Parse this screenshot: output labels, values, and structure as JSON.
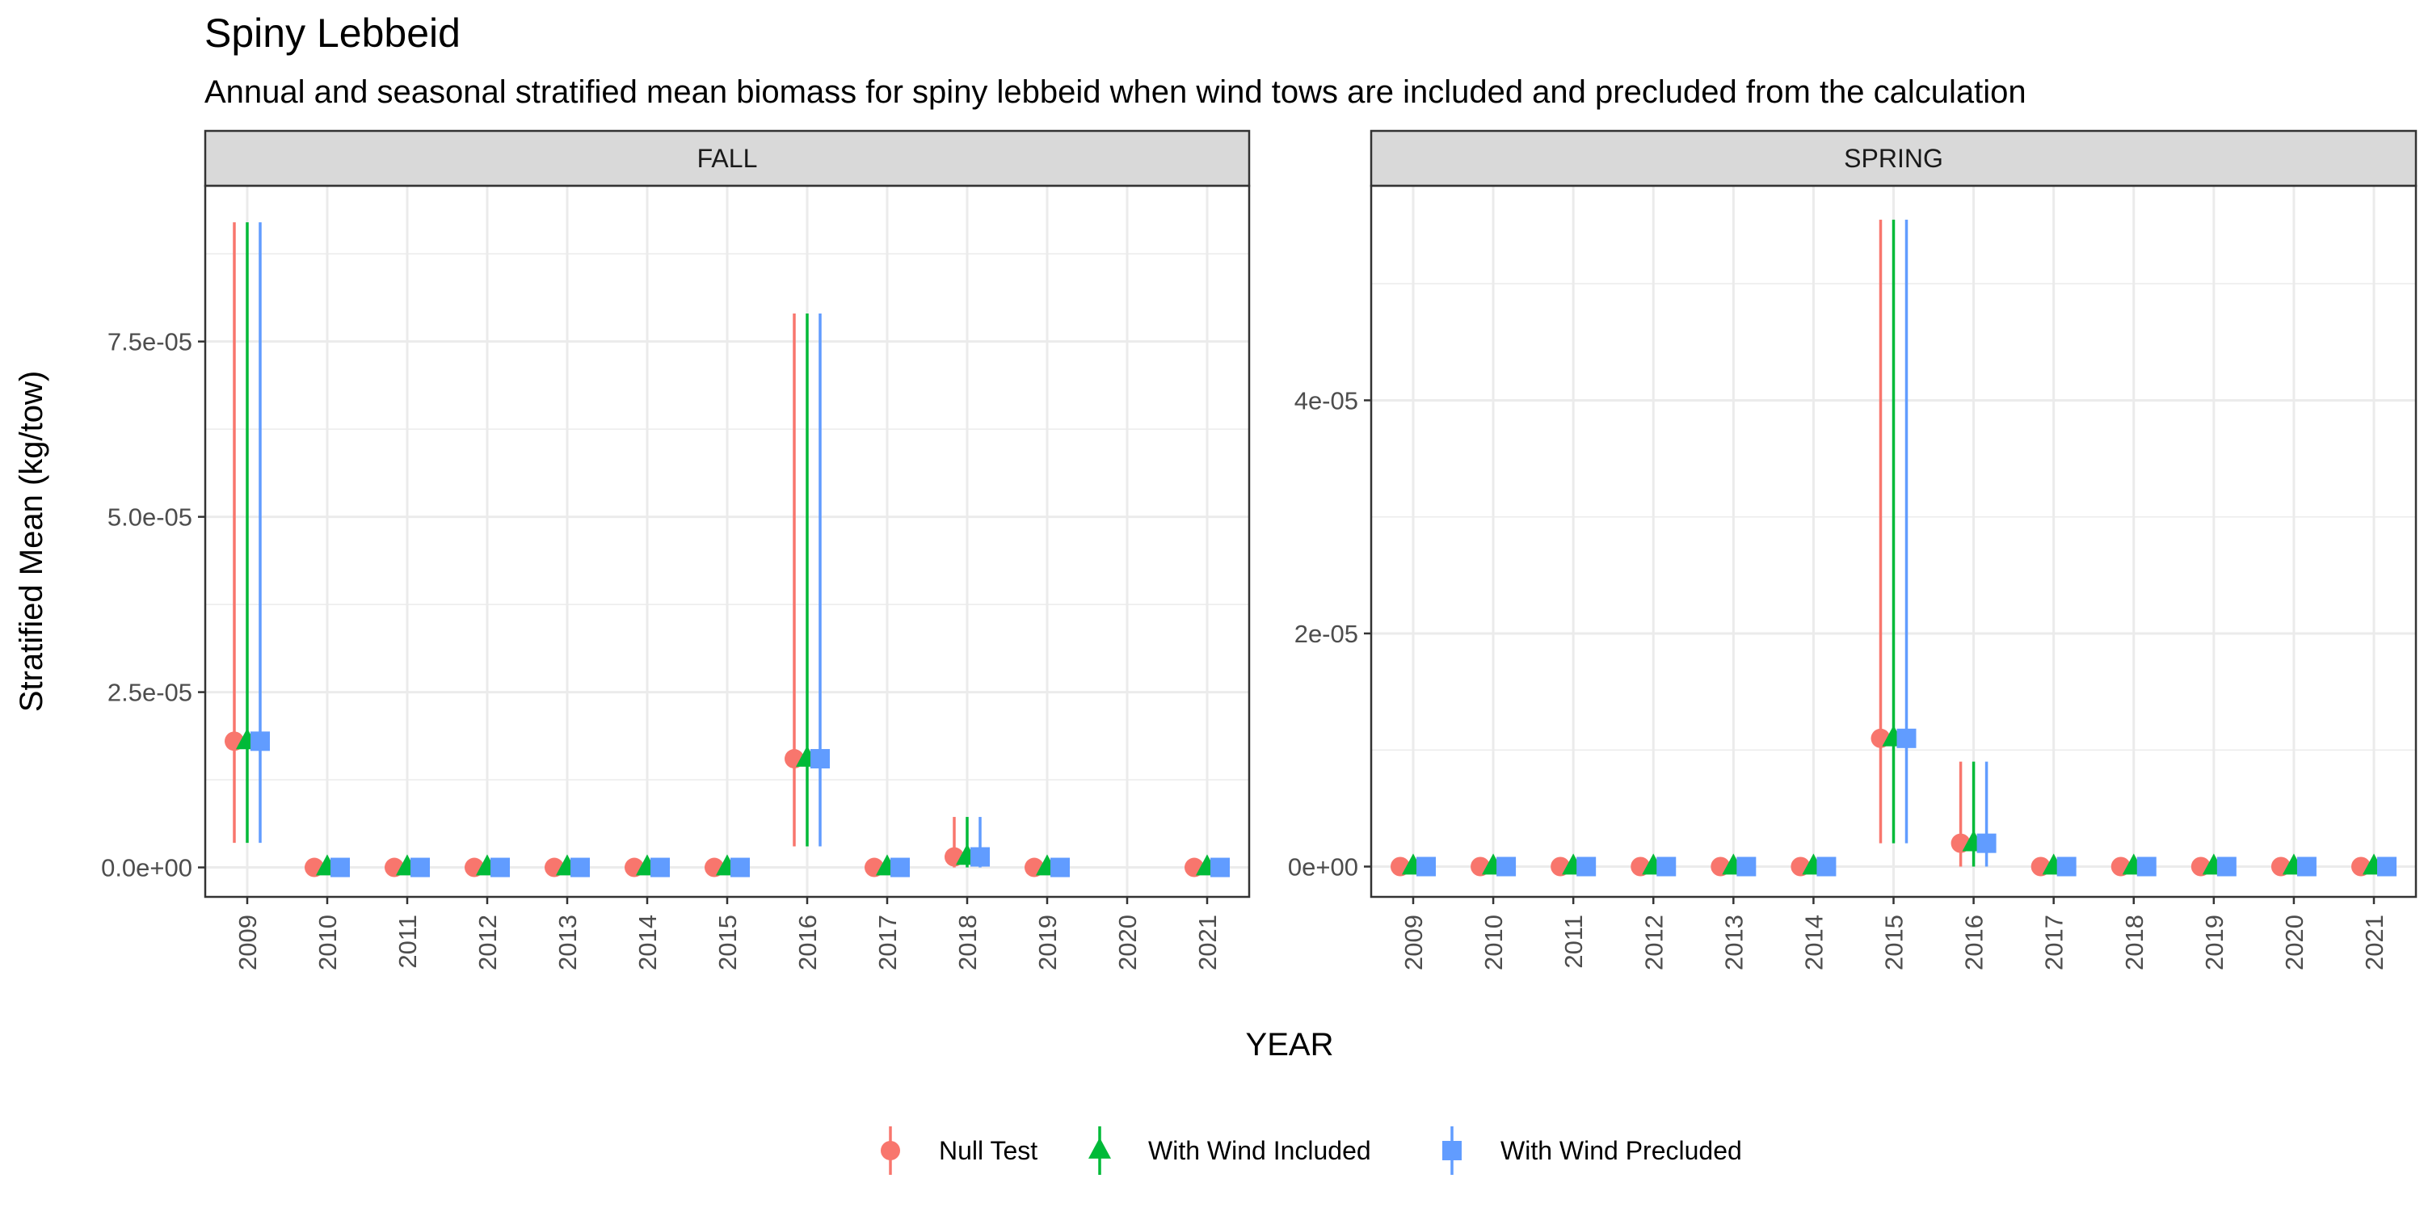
{
  "title": "Spiny Lebbeid",
  "subtitle": "Annual and seasonal stratified mean biomass for spiny lebbeid when wind tows are included and precluded from the calculation",
  "colors": {
    "Null Test": "#F8766D",
    "With Wind Included": "#00BA38",
    "With Wind Precluded": "#619CFF"
  },
  "chart_data": {
    "type": "scatter",
    "title": "Spiny Lebbeid",
    "subtitle": "Annual and seasonal stratified mean biomass for spiny lebbeid when wind tows are included and precluded from the calculation",
    "xlabel": "YEAR",
    "ylabel": "Stratified Mean (kg/tow)",
    "legend": {
      "position": "bottom",
      "entries": [
        "Null Test",
        "With Wind Included",
        "With Wind Precluded"
      ],
      "shapes": [
        "circle",
        "triangle",
        "square"
      ]
    },
    "grid": true,
    "point_values": "estimated stratified mean per year; error bar = lower/upper interval; identical across the three series",
    "facets": [
      {
        "label": "FALL",
        "ylim": [
          -4.2e-06,
          9.72e-05
        ],
        "yticks": [
          0,
          2.5e-05,
          5e-05,
          7.5e-05
        ],
        "yticklabels": [
          "0.0e+00",
          "2.5e-05",
          "5.0e-05",
          "7.5e-05"
        ],
        "categories": [
          "2009",
          "2010",
          "2011",
          "2012",
          "2013",
          "2014",
          "2015",
          "2016",
          "2017",
          "2018",
          "2019",
          "2020",
          "2021"
        ],
        "values": [
          1.8e-05,
          0,
          0,
          0,
          0,
          0,
          0,
          1.55e-05,
          0,
          1.5e-06,
          0,
          null,
          0
        ],
        "lower": [
          3.5e-06,
          0,
          0,
          0,
          0,
          0,
          0,
          3e-06,
          0,
          0,
          0,
          null,
          0
        ],
        "upper": [
          9.2e-05,
          0,
          0,
          0,
          0,
          0,
          0,
          7.9e-05,
          0,
          7.2e-06,
          0,
          null,
          0
        ]
      },
      {
        "label": "SPRING",
        "ylim": [
          -2.6e-06,
          5.84e-05
        ],
        "yticks": [
          0,
          2e-05,
          4e-05
        ],
        "yticklabels": [
          "0e+00",
          "2e-05",
          "4e-05"
        ],
        "categories": [
          "2009",
          "2010",
          "2011",
          "2012",
          "2013",
          "2014",
          "2015",
          "2016",
          "2017",
          "2018",
          "2019",
          "2020",
          "2021"
        ],
        "values": [
          0,
          0,
          0,
          0,
          0,
          0,
          1.1e-05,
          2e-06,
          0,
          0,
          0,
          0,
          0
        ],
        "lower": [
          0,
          0,
          0,
          0,
          0,
          0,
          2e-06,
          0,
          0,
          0,
          0,
          0,
          0
        ],
        "upper": [
          0,
          0,
          0,
          0,
          0,
          0,
          5.55e-05,
          9e-06,
          0,
          0,
          0,
          0,
          0
        ]
      }
    ],
    "series": [
      {
        "name": "Null Test"
      },
      {
        "name": "With Wind Included"
      },
      {
        "name": "With Wind Precluded"
      }
    ]
  }
}
